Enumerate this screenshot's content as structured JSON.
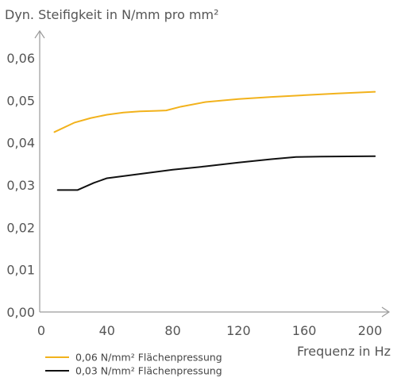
{
  "chart_data": {
    "type": "line",
    "ylabel": "Dyn. Steifigkeit in N/mm pro mm²",
    "xlabel": "Frequenz in Hz",
    "xlim": [
      0,
      210
    ],
    "ylim": [
      0,
      0.065
    ],
    "x_ticks": [
      0,
      40,
      80,
      120,
      160,
      200
    ],
    "x_tick_labels": [
      "0",
      "40",
      "80",
      "120",
      "160",
      "200"
    ],
    "y_ticks": [
      0,
      0.01,
      0.02,
      0.03,
      0.04,
      0.05,
      0.06
    ],
    "y_tick_labels": [
      "0,00",
      "0,01",
      "0,02",
      "0,03",
      "0,04",
      "0,05",
      "0,06"
    ],
    "grid": false,
    "legend_position": "bottom-left",
    "series": [
      {
        "name": "0,06 N/mm² Flächenpressung",
        "color": "#f2b21c",
        "x": [
          8,
          20,
          30,
          40,
          50,
          60,
          70,
          76,
          85,
          100,
          120,
          140,
          160,
          180,
          203
        ],
        "y": [
          0.0425,
          0.0447,
          0.0458,
          0.0466,
          0.0471,
          0.0474,
          0.0475,
          0.0476,
          0.0485,
          0.0496,
          0.0503,
          0.0508,
          0.0512,
          0.0516,
          0.052
        ]
      },
      {
        "name": "0,03 N/mm² Flächenpressung",
        "color": "#111111",
        "x": [
          10,
          22,
          32,
          40,
          60,
          80,
          100,
          120,
          140,
          155,
          170,
          203
        ],
        "y": [
          0.0288,
          0.0288,
          0.0305,
          0.0316,
          0.0326,
          0.0336,
          0.0344,
          0.0353,
          0.0361,
          0.0366,
          0.0367,
          0.0368
        ]
      }
    ]
  }
}
